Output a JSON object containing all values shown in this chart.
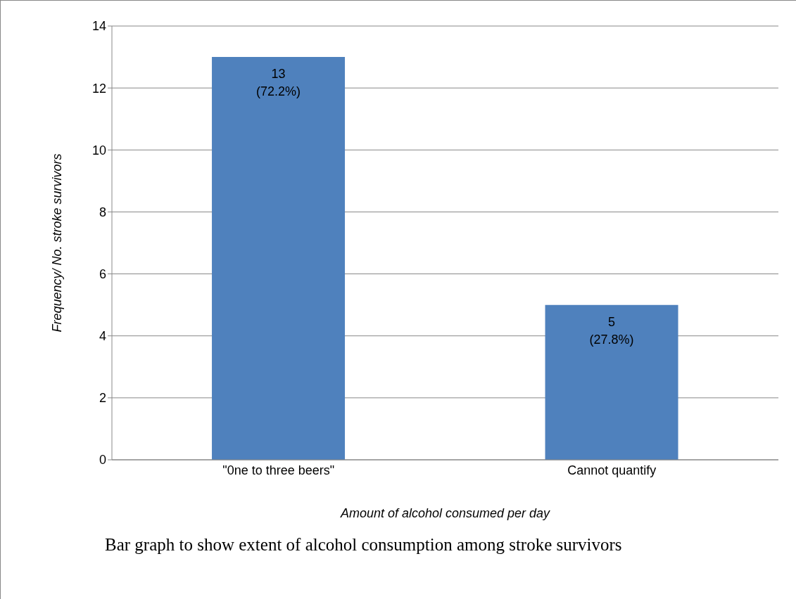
{
  "chart_data": {
    "type": "bar",
    "xlabel": "Amount of alcohol consumed per day",
    "ylabel": "Frequency/ No. stroke survivors",
    "categories": [
      "\"0ne to three beers\"",
      "Cannot quantify"
    ],
    "values": [
      13,
      5
    ],
    "color": "#4f81bd",
    "value_labels": [
      "13\n(72.2%)",
      "5\n(27.8%)"
    ],
    "ylim": [
      0,
      14
    ],
    "yticks": [
      0,
      2,
      4,
      6,
      8,
      10,
      12,
      14
    ],
    "grid": "y",
    "annotations": [
      "Bar graph to show extent of alcohol consumption among stroke survivors"
    ]
  }
}
